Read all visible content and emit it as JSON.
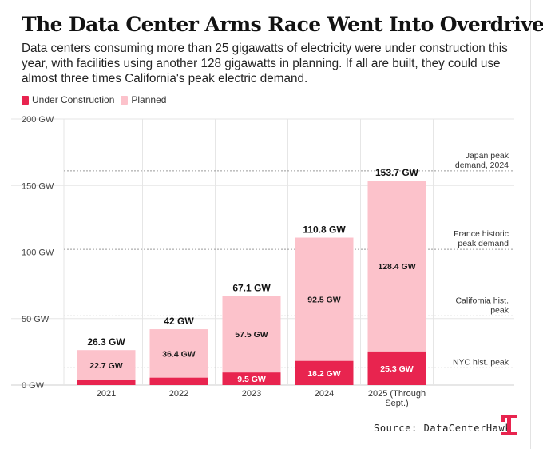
{
  "title": "The Data Center Arms Race Went Into Overdrive",
  "subtitle": "Data centers consuming more than 25 gigawatts of electricity were under construction this year, with facilities using another 128 gigawatts in planning. If all are built, they could use almost three times California's peak electric demand.",
  "source": "Source: DataCenterHawk",
  "logo_icon": "brand-logo-icon",
  "colors": {
    "under_construction": "#e8244f",
    "planned": "#fcc2cb",
    "grid": "#e6e6e6",
    "reference": "#9a9a9a"
  },
  "legend": [
    {
      "label": "Under Construction",
      "color": "#e8244f"
    },
    {
      "label": "Planned",
      "color": "#fcc2cb"
    }
  ],
  "chart_data": {
    "type": "bar",
    "stacked": true,
    "unit": "GW",
    "categories": [
      "2021",
      "2022",
      "2023",
      "2024",
      "2025 (Through Sept.)"
    ],
    "series": [
      {
        "name": "Under Construction",
        "values": [
          3.6,
          5.6,
          9.5,
          18.2,
          25.3
        ],
        "labels": [
          "",
          "",
          "9.5 GW",
          "18.2 GW",
          "25.3 GW"
        ]
      },
      {
        "name": "Planned",
        "values": [
          22.7,
          36.4,
          57.5,
          92.5,
          128.4
        ],
        "labels": [
          "22.7 GW",
          "36.4 GW",
          "57.5 GW",
          "92.5 GW",
          "128.4 GW"
        ]
      }
    ],
    "totals": [
      26.3,
      42,
      67.1,
      110.8,
      153.7
    ],
    "total_labels": [
      "26.3 GW",
      "42 GW",
      "67.1 GW",
      "110.8 GW",
      "153.7 GW"
    ],
    "ylim": [
      0,
      200
    ],
    "yticks": [
      0,
      50,
      100,
      150,
      200
    ],
    "ytick_labels": [
      "0 GW",
      "50 GW",
      "100 GW",
      "150 GW",
      "200 GW"
    ],
    "reference_lines": [
      {
        "value": 161,
        "label": [
          "Japan peak",
          "demand, 2024"
        ]
      },
      {
        "value": 102,
        "label": [
          "France historic",
          "peak demand"
        ]
      },
      {
        "value": 52,
        "label": [
          "California hist.",
          "peak"
        ]
      },
      {
        "value": 13,
        "label": [
          "NYC hist. peak"
        ]
      }
    ]
  }
}
